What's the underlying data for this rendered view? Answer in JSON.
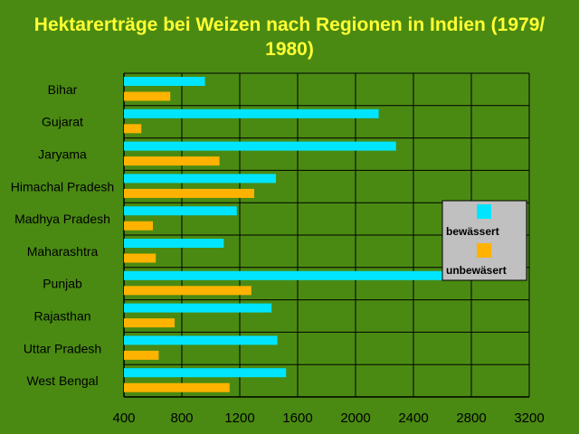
{
  "chart_data": {
    "type": "bar",
    "orientation": "horizontal",
    "title_lines": [
      "Hektarerträge bei Weizen nach Regionen in Indien (1979/",
      "1980)"
    ],
    "categories": [
      "Bihar",
      "Gujarat",
      "Jaryama",
      "Himachal Pradesh",
      "Madhya Pradesh",
      "Maharashtra",
      "Punjab",
      "Rajasthan",
      "Uttar Pradesh",
      "West Bengal"
    ],
    "series": [
      {
        "name": "bewässert",
        "color": "#00e5ff",
        "values": [
          960,
          2160,
          2280,
          1450,
          1180,
          1090,
          2660,
          1420,
          1460,
          1520
        ]
      },
      {
        "name": "unbewäsert",
        "color": "#ffb300",
        "values": [
          720,
          520,
          1060,
          1300,
          600,
          620,
          1280,
          750,
          640,
          1130
        ]
      }
    ],
    "x_ticks": [
      "400",
      "800",
      "1200",
      "1600",
      "2000",
      "2400",
      "2800",
      "3200"
    ],
    "xlim": [
      400,
      3200
    ],
    "grid": true,
    "legend_position": "right"
  },
  "colors": {
    "background": "#4a8a12",
    "title": "#ffff33",
    "legend_background": "#c0c0c0"
  }
}
